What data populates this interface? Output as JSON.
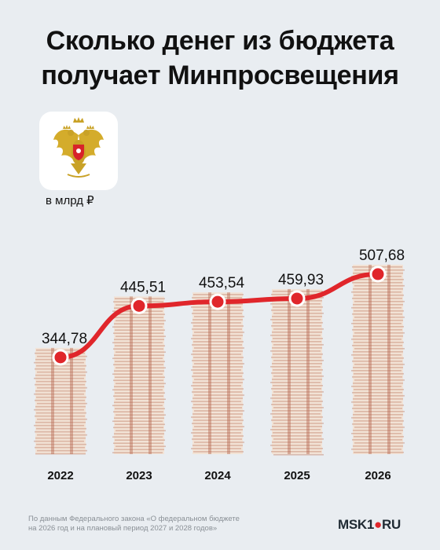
{
  "title_line1": "Сколько денег из бюджета",
  "title_line2": "получает Минпросвещения",
  "unit": "в млрд ₽",
  "footnote_line1": "По данным Федерального закона «О федеральном бюджете",
  "footnote_line2": "на 2026 год и на плановый период 2027 и 2028 годов»",
  "logo": {
    "part1": "MSK1",
    "part2": "RU"
  },
  "colors": {
    "line": "#e0262b",
    "bill_light": "#f2e3d6",
    "bill_dark": "#c98f7a",
    "background": "#e9edf1"
  },
  "chart_data": {
    "type": "bar",
    "categories": [
      "2022",
      "2023",
      "2024",
      "2025",
      "2026"
    ],
    "values": [
      344.78,
      445.51,
      453.54,
      459.93,
      507.68
    ],
    "value_labels": [
      "344,78",
      "445,51",
      "453,54",
      "459,93",
      "507,68"
    ],
    "grid": false,
    "overlay": "line"
  }
}
